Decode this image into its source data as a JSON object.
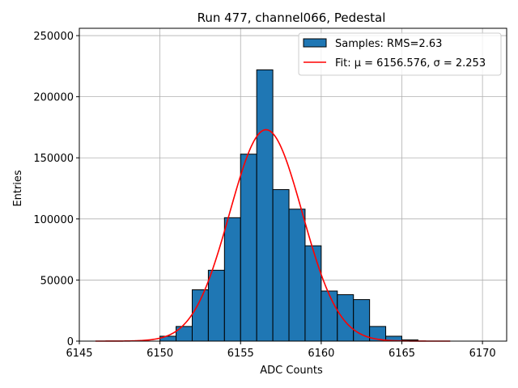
{
  "chart_data": {
    "type": "bar",
    "title": "Run 477, channel066, Pedestal",
    "xlabel": "ADC Counts",
    "ylabel": "Entries",
    "xlim": [
      6145,
      6171.5
    ],
    "ylim": [
      0,
      256000
    ],
    "xticks": [
      6145,
      6150,
      6155,
      6160,
      6165,
      6170
    ],
    "yticks": [
      0,
      50000,
      100000,
      150000,
      200000,
      250000
    ],
    "grid": true,
    "legend_placement": "top-right",
    "bin_width": 1,
    "bins": [
      {
        "left": 6150,
        "value": 4000
      },
      {
        "left": 6151,
        "value": 12000
      },
      {
        "left": 6152,
        "value": 42000
      },
      {
        "left": 6153,
        "value": 58000
      },
      {
        "left": 6154,
        "value": 101000
      },
      {
        "left": 6155,
        "value": 153000
      },
      {
        "left": 6156,
        "value": 222000
      },
      {
        "left": 6157,
        "value": 124000
      },
      {
        "left": 6158,
        "value": 108000
      },
      {
        "left": 6159,
        "value": 78000
      },
      {
        "left": 6160,
        "value": 41000
      },
      {
        "left": 6161,
        "value": 38000
      },
      {
        "left": 6162,
        "value": 34000
      },
      {
        "left": 6163,
        "value": 12000
      },
      {
        "left": 6164,
        "value": 4000
      },
      {
        "left": 6165,
        "value": 1000
      }
    ],
    "fit": {
      "mu": 6156.576,
      "sigma": 2.253,
      "amplitude": 173000,
      "x_range": [
        6146,
        6168
      ]
    },
    "series": [
      {
        "name": "Samples: RMS=2.63",
        "kind": "histogram",
        "color": "#1f77b4",
        "edgecolor": "#000000"
      },
      {
        "name": "Fit: μ = 6156.576, σ = 2.253",
        "kind": "line",
        "color": "#ff0000"
      }
    ]
  }
}
